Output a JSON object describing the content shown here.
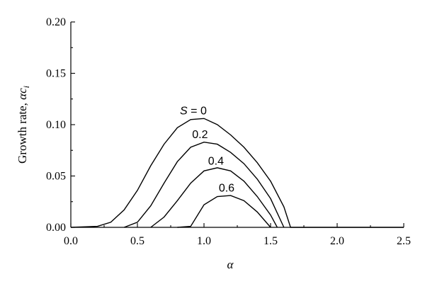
{
  "chart_data": {
    "type": "line",
    "title": "",
    "xlabel": "α",
    "ylabel_main": "Growth rate, ",
    "ylabel_symbol": "αc",
    "ylabel_subscript": "i",
    "xlim": [
      0.0,
      2.5
    ],
    "ylim": [
      0.0,
      0.2
    ],
    "x_ticks": [
      "0.0",
      "0.5",
      "1.0",
      "1.5",
      "2.0",
      "2.5"
    ],
    "y_ticks": [
      "0.00",
      "0.05",
      "0.10",
      "0.15",
      "0.20"
    ],
    "grid": false,
    "legend": "inline-labels",
    "series": [
      {
        "name": "S = 0",
        "x": [
          0.0,
          0.2,
          0.3,
          0.4,
          0.5,
          0.6,
          0.7,
          0.8,
          0.9,
          1.0,
          1.1,
          1.2,
          1.3,
          1.4,
          1.5,
          1.6,
          1.65,
          2.5
        ],
        "y": [
          0.0,
          0.001,
          0.005,
          0.017,
          0.036,
          0.06,
          0.081,
          0.097,
          0.105,
          0.106,
          0.1,
          0.09,
          0.078,
          0.063,
          0.045,
          0.02,
          0.0,
          0.0
        ]
      },
      {
        "name": "0.2",
        "x": [
          0.4,
          0.5,
          0.6,
          0.7,
          0.8,
          0.9,
          1.0,
          1.1,
          1.2,
          1.3,
          1.4,
          1.5,
          1.6
        ],
        "y": [
          0.0,
          0.005,
          0.021,
          0.043,
          0.064,
          0.078,
          0.083,
          0.081,
          0.073,
          0.062,
          0.047,
          0.028,
          0.0
        ]
      },
      {
        "name": "0.4",
        "x": [
          0.6,
          0.7,
          0.8,
          0.9,
          1.0,
          1.1,
          1.2,
          1.3,
          1.4,
          1.5,
          1.55
        ],
        "y": [
          0.0,
          0.01,
          0.026,
          0.043,
          0.055,
          0.058,
          0.055,
          0.045,
          0.03,
          0.012,
          0.0
        ]
      },
      {
        "name": "0.6",
        "x": [
          0.8,
          0.9,
          1.0,
          1.1,
          1.2,
          1.3,
          1.4,
          1.5
        ],
        "y": [
          0.0,
          0.001,
          0.022,
          0.03,
          0.031,
          0.026,
          0.015,
          0.0
        ]
      }
    ],
    "series_labels": [
      {
        "text_pre": "S",
        "text_post": " = 0",
        "x": 0.92,
        "y": 0.11
      },
      {
        "text_pre": "",
        "text_post": "0.2",
        "x": 0.97,
        "y": 0.087
      },
      {
        "text_pre": "",
        "text_post": "0.4",
        "x": 1.09,
        "y": 0.061
      },
      {
        "text_pre": "",
        "text_post": "0.6",
        "x": 1.17,
        "y": 0.035
      }
    ]
  }
}
